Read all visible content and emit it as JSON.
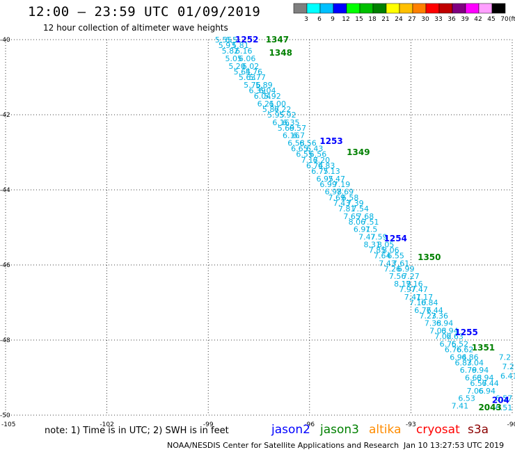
{
  "header": {
    "title": "12:00 — 23:59 UTC 01/09/2019",
    "subtitle": "12 hour collection of altimeter wave heights"
  },
  "legend": {
    "unit": "(ft)",
    "labels": [
      "3",
      "6",
      "9",
      "12",
      "15",
      "18",
      "21",
      "24",
      "27",
      "30",
      "33",
      "36",
      "39",
      "42",
      "45",
      "70"
    ],
    "colors": [
      "#7f7f7f",
      "#00ffff",
      "#00c0ff",
      "#0000ff",
      "#00ff00",
      "#00c000",
      "#008000",
      "#ffff00",
      "#ffc000",
      "#ff8000",
      "#ff0000",
      "#c00000",
      "#800080",
      "#ff00ff",
      "#ffa0ff",
      "#000000"
    ]
  },
  "map": {
    "lon_ticks": [
      "-105",
      "-102",
      "-99",
      "-96",
      "-93",
      "-90"
    ],
    "lat_ticks": [
      "-40",
      "-42",
      "-44",
      "-46",
      "-48",
      "-50"
    ],
    "lon_range": [
      -105,
      -90
    ],
    "lat_range": [
      -50,
      -40
    ],
    "grid_style": "dotted",
    "track_color": "#00b0e0",
    "times": [
      {
        "text": "1252",
        "lon": -98.2,
        "lat": -40.0,
        "color": "#0000ff"
      },
      {
        "text": "1347",
        "lon": -97.3,
        "lat": -40.0,
        "color": "#008000"
      },
      {
        "text": "1348",
        "lon": -97.2,
        "lat": -40.35,
        "color": "#008000"
      },
      {
        "text": "1253",
        "lon": -95.7,
        "lat": -42.7,
        "color": "#0000ff"
      },
      {
        "text": "1349",
        "lon": -94.9,
        "lat": -43.0,
        "color": "#008000"
      },
      {
        "text": "1254",
        "lon": -93.8,
        "lat": -45.3,
        "color": "#0000ff"
      },
      {
        "text": "1350",
        "lon": -92.8,
        "lat": -45.8,
        "color": "#008000"
      },
      {
        "text": "1255",
        "lon": -91.7,
        "lat": -47.8,
        "color": "#0000ff"
      },
      {
        "text": "1351",
        "lon": -91.2,
        "lat": -48.2,
        "color": "#008000"
      },
      {
        "text": "204",
        "lon": -90.6,
        "lat": -49.6,
        "color": "#0000ff"
      },
      {
        "text": "2043",
        "lon": -91.0,
        "lat": -49.8,
        "color": "#008000"
      }
    ],
    "values": [
      {
        "text": "5.55",
        "lon": -98.8,
        "lat": -40.0
      },
      {
        "text": "6.5",
        "lon": -98.5,
        "lat": -40.0
      },
      {
        "text": "5.93",
        "lon": -98.7,
        "lat": -40.15
      },
      {
        "text": "5.81",
        "lon": -98.3,
        "lat": -40.15
      },
      {
        "text": "5.82",
        "lon": -98.6,
        "lat": -40.3
      },
      {
        "text": "6.16",
        "lon": -98.2,
        "lat": -40.3
      },
      {
        "text": "5.05",
        "lon": -98.5,
        "lat": -40.5
      },
      {
        "text": "6.06",
        "lon": -98.1,
        "lat": -40.5
      },
      {
        "text": "5.20",
        "lon": -98.4,
        "lat": -40.7
      },
      {
        "text": "6.02",
        "lon": -98.0,
        "lat": -40.7
      },
      {
        "text": "5.64",
        "lon": -98.25,
        "lat": -40.85
      },
      {
        "text": "5.76",
        "lon": -97.9,
        "lat": -40.85
      },
      {
        "text": "5.63",
        "lon": -98.1,
        "lat": -41.0
      },
      {
        "text": "5.77",
        "lon": -97.8,
        "lat": -41.0
      },
      {
        "text": "5.76",
        "lon": -97.95,
        "lat": -41.2
      },
      {
        "text": "5.89",
        "lon": -97.6,
        "lat": -41.2
      },
      {
        "text": "6.39",
        "lon": -97.8,
        "lat": -41.35
      },
      {
        "text": "6.04",
        "lon": -97.5,
        "lat": -41.35
      },
      {
        "text": "6.04",
        "lon": -97.65,
        "lat": -41.5
      },
      {
        "text": "5.92",
        "lon": -97.35,
        "lat": -41.5
      },
      {
        "text": "6.21",
        "lon": -97.55,
        "lat": -41.7
      },
      {
        "text": "6.00",
        "lon": -97.2,
        "lat": -41.7
      },
      {
        "text": "5.87",
        "lon": -97.4,
        "lat": -41.85
      },
      {
        "text": "6.22",
        "lon": -97.05,
        "lat": -41.85
      },
      {
        "text": "5.95",
        "lon": -97.25,
        "lat": -42.0
      },
      {
        "text": "5.92",
        "lon": -96.9,
        "lat": -42.0
      },
      {
        "text": "6.16",
        "lon": -97.1,
        "lat": -42.2
      },
      {
        "text": "6.35",
        "lon": -96.8,
        "lat": -42.2
      },
      {
        "text": "5.69",
        "lon": -96.95,
        "lat": -42.35
      },
      {
        "text": "6.57",
        "lon": -96.6,
        "lat": -42.35
      },
      {
        "text": "6.16",
        "lon": -96.8,
        "lat": -42.55
      },
      {
        "text": "6.7",
        "lon": -96.5,
        "lat": -42.55
      },
      {
        "text": "6.58",
        "lon": -96.65,
        "lat": -42.75
      },
      {
        "text": "6.56",
        "lon": -96.3,
        "lat": -42.75
      },
      {
        "text": "6.65",
        "lon": -96.55,
        "lat": -42.9
      },
      {
        "text": "6.43",
        "lon": -96.1,
        "lat": -42.9
      },
      {
        "text": "6.55",
        "lon": -96.4,
        "lat": -43.05
      },
      {
        "text": "6.56",
        "lon": -96.0,
        "lat": -43.05
      },
      {
        "text": "7.17",
        "lon": -96.25,
        "lat": -43.2
      },
      {
        "text": "6.20",
        "lon": -95.9,
        "lat": -43.2
      },
      {
        "text": "6.74",
        "lon": -96.1,
        "lat": -43.35
      },
      {
        "text": "6.83",
        "lon": -95.75,
        "lat": -43.35
      },
      {
        "text": "6.75",
        "lon": -95.95,
        "lat": -43.5
      },
      {
        "text": "7.13",
        "lon": -95.6,
        "lat": -43.5
      },
      {
        "text": "6.95",
        "lon": -95.8,
        "lat": -43.7
      },
      {
        "text": "7.47",
        "lon": -95.45,
        "lat": -43.7
      },
      {
        "text": "6.99",
        "lon": -95.7,
        "lat": -43.85
      },
      {
        "text": "7.19",
        "lon": -95.3,
        "lat": -43.85
      },
      {
        "text": "6.98",
        "lon": -95.55,
        "lat": -44.05
      },
      {
        "text": "7.69",
        "lon": -95.2,
        "lat": -44.05
      },
      {
        "text": "7.69",
        "lon": -95.45,
        "lat": -44.2
      },
      {
        "text": "6.58",
        "lon": -95.05,
        "lat": -44.2
      },
      {
        "text": "7.43",
        "lon": -95.3,
        "lat": -44.35
      },
      {
        "text": "7.39",
        "lon": -94.9,
        "lat": -44.35
      },
      {
        "text": "7.81",
        "lon": -95.15,
        "lat": -44.5
      },
      {
        "text": "7.54",
        "lon": -94.75,
        "lat": -44.5
      },
      {
        "text": "7.65",
        "lon": -95.0,
        "lat": -44.7
      },
      {
        "text": "7.68",
        "lon": -94.6,
        "lat": -44.7
      },
      {
        "text": "8.06",
        "lon": -94.85,
        "lat": -44.85
      },
      {
        "text": "7.51",
        "lon": -94.45,
        "lat": -44.85
      },
      {
        "text": "6.91",
        "lon": -94.7,
        "lat": -45.05
      },
      {
        "text": "7.5",
        "lon": -94.35,
        "lat": -45.05
      },
      {
        "text": "7.47",
        "lon": -94.55,
        "lat": -45.25
      },
      {
        "text": "7.59",
        "lon": -94.2,
        "lat": -45.25
      },
      {
        "text": "8.31",
        "lon": -94.4,
        "lat": -45.45
      },
      {
        "text": "8.05",
        "lon": -94.0,
        "lat": -45.45
      },
      {
        "text": "7.85",
        "lon": -94.25,
        "lat": -45.6
      },
      {
        "text": "8.06",
        "lon": -93.85,
        "lat": -45.6
      },
      {
        "text": "7.64",
        "lon": -94.1,
        "lat": -45.75
      },
      {
        "text": "6.55",
        "lon": -93.7,
        "lat": -45.75
      },
      {
        "text": "7.43",
        "lon": -93.95,
        "lat": -45.95
      },
      {
        "text": "7.61",
        "lon": -93.55,
        "lat": -45.95
      },
      {
        "text": "7.26",
        "lon": -93.8,
        "lat": -46.1
      },
      {
        "text": "6.99",
        "lon": -93.4,
        "lat": -46.1
      },
      {
        "text": "7.56",
        "lon": -93.65,
        "lat": -46.3
      },
      {
        "text": "7.27",
        "lon": -93.25,
        "lat": -46.3
      },
      {
        "text": "8.19",
        "lon": -93.5,
        "lat": -46.5
      },
      {
        "text": "7.16",
        "lon": -93.15,
        "lat": -46.5
      },
      {
        "text": "7.97",
        "lon": -93.35,
        "lat": -46.65
      },
      {
        "text": "7.47",
        "lon": -93.0,
        "lat": -46.65
      },
      {
        "text": "7.41",
        "lon": -93.2,
        "lat": -46.85
      },
      {
        "text": "7.17",
        "lon": -92.85,
        "lat": -46.85
      },
      {
        "text": "7.10",
        "lon": -93.05,
        "lat": -47.0
      },
      {
        "text": "6.84",
        "lon": -92.7,
        "lat": -47.0
      },
      {
        "text": "6.76",
        "lon": -92.9,
        "lat": -47.2
      },
      {
        "text": "7.44",
        "lon": -92.55,
        "lat": -47.2
      },
      {
        "text": "7.23",
        "lon": -92.75,
        "lat": -47.35
      },
      {
        "text": "7.36",
        "lon": -92.4,
        "lat": -47.35
      },
      {
        "text": "7.38",
        "lon": -92.6,
        "lat": -47.55
      },
      {
        "text": "6.94",
        "lon": -92.25,
        "lat": -47.55
      },
      {
        "text": "7.03",
        "lon": -92.45,
        "lat": -47.75
      },
      {
        "text": "6.94",
        "lon": -92.1,
        "lat": -47.75
      },
      {
        "text": "7.02",
        "lon": -92.3,
        "lat": -47.9
      },
      {
        "text": "6.63",
        "lon": -91.95,
        "lat": -47.9
      },
      {
        "text": "6.75",
        "lon": -92.15,
        "lat": -48.1
      },
      {
        "text": "6.52",
        "lon": -91.8,
        "lat": -48.1
      },
      {
        "text": "6.76",
        "lon": -92.0,
        "lat": -48.25
      },
      {
        "text": "6.62",
        "lon": -91.65,
        "lat": -48.25
      },
      {
        "text": "6.94",
        "lon": -91.85,
        "lat": -48.45
      },
      {
        "text": "6.86",
        "lon": -91.5,
        "lat": -48.45
      },
      {
        "text": "6.83",
        "lon": -91.7,
        "lat": -48.6
      },
      {
        "text": "7.04",
        "lon": -91.35,
        "lat": -48.6
      },
      {
        "text": "6.79",
        "lon": -91.55,
        "lat": -48.8
      },
      {
        "text": "6.94",
        "lon": -91.2,
        "lat": -48.8
      },
      {
        "text": "6.63",
        "lon": -91.4,
        "lat": -49.0
      },
      {
        "text": "6.94",
        "lon": -91.05,
        "lat": -49.0
      },
      {
        "text": "6.57",
        "lon": -91.25,
        "lat": -49.15
      },
      {
        "text": "6.44",
        "lon": -90.9,
        "lat": -49.15
      },
      {
        "text": "7.06",
        "lon": -91.35,
        "lat": -49.35
      },
      {
        "text": "6.94",
        "lon": -91.0,
        "lat": -49.35
      },
      {
        "text": "6.53",
        "lon": -91.6,
        "lat": -49.55
      },
      {
        "text": "7.41",
        "lon": -91.8,
        "lat": -49.75
      },
      {
        "text": "6.57",
        "lon": -90.5,
        "lat": -49.55
      },
      {
        "text": "6.51",
        "lon": -90.5,
        "lat": -49.8
      },
      {
        "text": "7.2",
        "lon": -90.4,
        "lat": -48.45
      },
      {
        "text": "7.2",
        "lon": -90.3,
        "lat": -48.7
      },
      {
        "text": "6.41",
        "lon": -90.35,
        "lat": -48.95
      }
    ]
  },
  "note": {
    "text": "note: 1) Time is in UTC; 2) SWH is in feet"
  },
  "satellites": [
    {
      "name": "jason2",
      "color": "#0000ff"
    },
    {
      "name": "jason3",
      "color": "#008000"
    },
    {
      "name": "altika",
      "color": "#ff8c00"
    },
    {
      "name": "cryosat",
      "color": "#ff0000"
    },
    {
      "name": "s3a",
      "color": "#8b0000"
    }
  ],
  "footer": {
    "credit": "NOAA/NESDIS Center for Satellite Applications and Research",
    "timestamp": "Jan 10 13:27:53 UTC 2019"
  }
}
